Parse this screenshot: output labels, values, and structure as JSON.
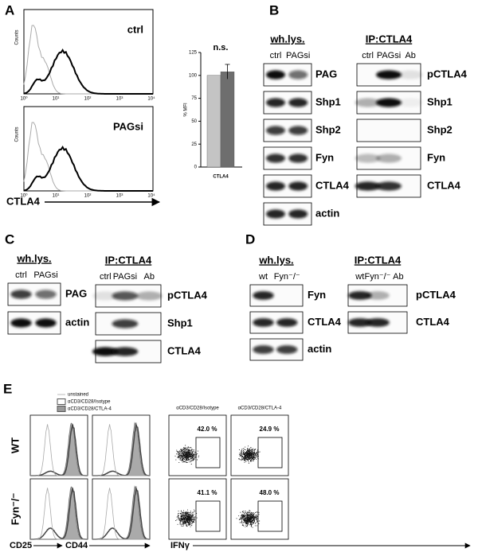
{
  "panel_labels": [
    "A",
    "B",
    "C",
    "D",
    "E"
  ],
  "panel_a": {
    "histograms": [
      {
        "label": "ctrl"
      },
      {
        "label": "PAGsi"
      }
    ],
    "y_label": "Counts",
    "x_ticks": [
      "10⁰",
      "10¹",
      "10²",
      "10³",
      "10⁴"
    ],
    "x_label": "CTLA4"
  },
  "chart_data": {
    "type": "bar",
    "annotation": "n.s.",
    "y_label": "% MFI",
    "x_label": "CTLA4",
    "categories": [
      null,
      null
    ],
    "values": [
      100,
      104
    ],
    "errors": [
      null,
      8
    ],
    "colors": [
      "#c4c4c4",
      "#6e6e6e"
    ],
    "ylim": [
      0,
      125
    ],
    "yticks": [
      0,
      25,
      50,
      75,
      100,
      125
    ]
  },
  "panel_b": {
    "wh_lys": {
      "title": "wh.lys.",
      "lanes": [
        "ctrl",
        "PAGsi"
      ],
      "rows": [
        "PAG",
        "Shp1",
        "Shp2",
        "Fyn",
        "CTLA4",
        "actin"
      ]
    },
    "ip": {
      "title": "IP:CTLA4",
      "lanes": [
        "ctrl",
        "PAGsi",
        "Ab"
      ],
      "rows": [
        "pCTLA4",
        "Shp1",
        "Shp2",
        "Fyn",
        "CTLA4"
      ]
    }
  },
  "panel_c": {
    "wh_lys": {
      "title": "wh.lys.",
      "lanes": [
        "ctrl",
        "PAGsi"
      ],
      "rows": [
        "PAG",
        "actin"
      ]
    },
    "ip": {
      "title": "IP:CTLA4",
      "lanes": [
        "ctrl",
        "PAGsi",
        "Ab"
      ],
      "rows": [
        "pCTLA4",
        "Shp1",
        "CTLA4"
      ]
    }
  },
  "panel_d": {
    "wh_lys": {
      "title": "wh.lys.",
      "lanes": [
        "wt",
        "Fyn⁻/⁻"
      ],
      "rows": [
        "Fyn",
        "CTLA4",
        "actin"
      ]
    },
    "ip": {
      "title": "IP:CTLA4",
      "lanes": [
        "wt",
        "Fyn⁻/⁻",
        "Ab"
      ],
      "rows": [
        "pCTLA4",
        "CTLA4"
      ]
    }
  },
  "panel_e": {
    "legend": [
      "unstained",
      "αCD3/CD28/Isotype",
      "αCD3/CD28/CTLA-4"
    ],
    "row_labels": [
      "WT",
      "Fyn⁻/⁻"
    ],
    "x_labels": [
      "CD25",
      "CD44",
      "IFNγ"
    ],
    "dot_plot_titles": [
      "αCD3/CD28/Isotype",
      "αCD3/CD28/CTLA-4"
    ],
    "gates": [
      [
        "42.0 %",
        "24.9 %"
      ],
      [
        "41.1 %",
        "48.0 %"
      ]
    ]
  }
}
